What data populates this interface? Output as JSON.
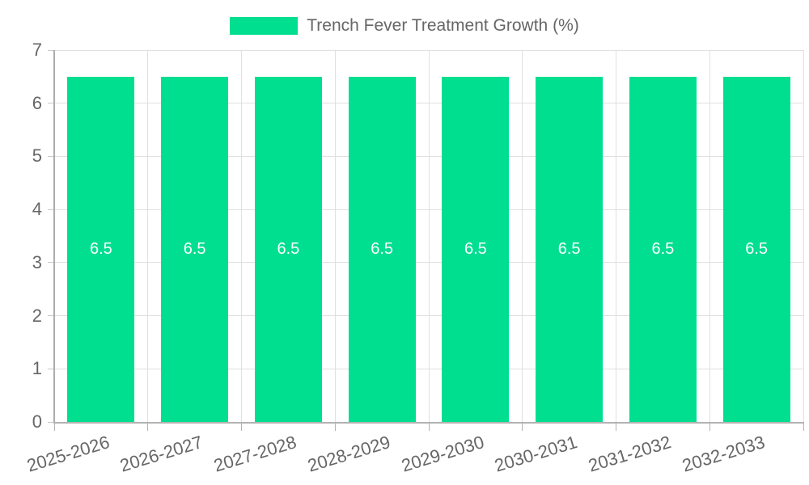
{
  "chart_data": {
    "type": "bar",
    "title": "Trench Fever Treatment Growth (%)",
    "categories": [
      "2025-2026",
      "2026-2027",
      "2027-2028",
      "2028-2029",
      "2029-2030",
      "2030-2031",
      "2031-2032",
      "2032-2033"
    ],
    "series": [
      {
        "name": "Trench Fever Treatment Growth (%)",
        "values": [
          6.5,
          6.5,
          6.5,
          6.5,
          6.5,
          6.5,
          6.5,
          6.5
        ]
      }
    ],
    "value_labels": [
      "6.5",
      "6.5",
      "6.5",
      "6.5",
      "6.5",
      "6.5",
      "6.5",
      "6.5"
    ],
    "xlabel": "",
    "ylabel": "",
    "ylim": [
      0,
      7
    ],
    "yticks": [
      0,
      1,
      2,
      3,
      4,
      5,
      6,
      7
    ],
    "grid": "on",
    "legend_position": "top-center",
    "bar_color": "#00DE90",
    "value_label_color": "#ffffff",
    "axis_text_color": "#666666"
  }
}
